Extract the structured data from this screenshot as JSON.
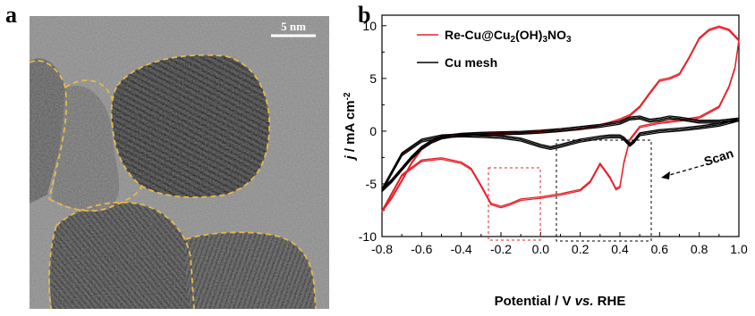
{
  "panels": {
    "a": {
      "letter": "a",
      "scale_bar_label": "5 nm",
      "outline_color": "#e8b84a"
    },
    "b": {
      "letter": "b"
    }
  },
  "chart_data": {
    "type": "line",
    "xlabel": "Potential / V vs. RHE",
    "ylabel": "j / mA cm⁻²",
    "xlim": [
      -0.8,
      1.0
    ],
    "ylim": [
      -10,
      11
    ],
    "xticks": [
      -0.8,
      -0.6,
      -0.4,
      -0.2,
      0.0,
      0.2,
      0.4,
      0.6,
      0.8,
      1.0
    ],
    "yticks": [
      -10,
      -5,
      0,
      5,
      10
    ],
    "grid": false,
    "legend": "top-left",
    "annotation": "Scan",
    "series": [
      {
        "name": "Re-Cu@Cu2(OH)3NO3",
        "color": "#e8202a",
        "loops": 2,
        "x": [
          -0.8,
          -0.75,
          -0.7,
          -0.65,
          -0.6,
          -0.55,
          -0.5,
          -0.45,
          -0.4,
          -0.3,
          -0.2,
          -0.1,
          0.0,
          0.1,
          0.2,
          0.3,
          0.35,
          0.4,
          0.45,
          0.5,
          0.55,
          0.6,
          0.65,
          0.7,
          0.75,
          0.8,
          0.85,
          0.9,
          0.95,
          1.0,
          0.98,
          0.95,
          0.9,
          0.8,
          0.7,
          0.6,
          0.5,
          0.45,
          0.42,
          0.4,
          0.38,
          0.35,
          0.3,
          0.25,
          0.2,
          0.1,
          0.0,
          -0.1,
          -0.15,
          -0.2,
          -0.25,
          -0.3,
          -0.35,
          -0.4,
          -0.5,
          -0.6,
          -0.7,
          -0.8
        ],
        "y": [
          -7.6,
          -6.3,
          -4.7,
          -3.0,
          -1.7,
          -1.0,
          -0.6,
          -0.45,
          -0.35,
          -0.25,
          -0.2,
          -0.15,
          -0.05,
          0.05,
          0.2,
          0.55,
          0.8,
          1.1,
          1.5,
          2.3,
          3.6,
          4.8,
          5.0,
          5.4,
          7.0,
          8.8,
          9.6,
          9.9,
          9.6,
          8.6,
          6.0,
          4.2,
          2.3,
          1.3,
          1.0,
          0.8,
          0.4,
          -0.8,
          -3.0,
          -5.3,
          -5.5,
          -4.4,
          -3.1,
          -4.8,
          -5.6,
          -6.0,
          -6.3,
          -6.5,
          -6.9,
          -7.2,
          -6.9,
          -5.2,
          -3.6,
          -3.0,
          -2.6,
          -2.8,
          -4.2,
          -7.6
        ]
      },
      {
        "name": "Cu mesh",
        "color": "#000000",
        "loops": 3,
        "x": [
          -0.8,
          -0.75,
          -0.7,
          -0.65,
          -0.6,
          -0.55,
          -0.5,
          -0.45,
          -0.4,
          -0.3,
          -0.2,
          -0.1,
          0.0,
          0.1,
          0.2,
          0.3,
          0.4,
          0.45,
          0.5,
          0.55,
          0.6,
          0.65,
          0.7,
          0.8,
          0.9,
          1.0,
          0.9,
          0.8,
          0.7,
          0.6,
          0.5,
          0.47,
          0.45,
          0.42,
          0.4,
          0.35,
          0.3,
          0.2,
          0.1,
          0.05,
          0.0,
          -0.1,
          -0.2,
          -0.3,
          -0.4,
          -0.5,
          -0.6,
          -0.7,
          -0.8
        ],
        "y": [
          -5.6,
          -4.7,
          -3.6,
          -2.5,
          -1.6,
          -1.0,
          -0.6,
          -0.45,
          -0.35,
          -0.25,
          -0.2,
          -0.15,
          -0.05,
          0.1,
          0.3,
          0.5,
          0.8,
          1.2,
          1.3,
          1.0,
          1.1,
          1.3,
          1.2,
          0.9,
          0.9,
          1.1,
          0.6,
          0.35,
          0.15,
          0.0,
          -0.3,
          -1.0,
          -1.3,
          -0.7,
          -0.5,
          -0.5,
          -0.6,
          -0.9,
          -1.4,
          -1.6,
          -1.4,
          -0.8,
          -0.55,
          -0.45,
          -0.4,
          -0.5,
          -0.9,
          -2.2,
          -5.6
        ]
      }
    ]
  }
}
